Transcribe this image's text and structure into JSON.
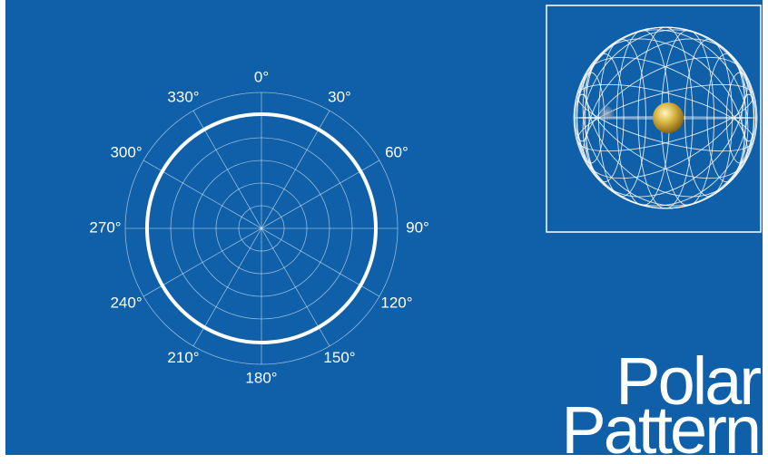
{
  "polar_plot": {
    "angle_labels": [
      "0°",
      "30°",
      "60°",
      "90°",
      "120°",
      "150°",
      "180°",
      "210°",
      "240°",
      "270°",
      "300°",
      "330°"
    ]
  },
  "title": {
    "line1": "Polar",
    "line2": "Pattern"
  }
}
